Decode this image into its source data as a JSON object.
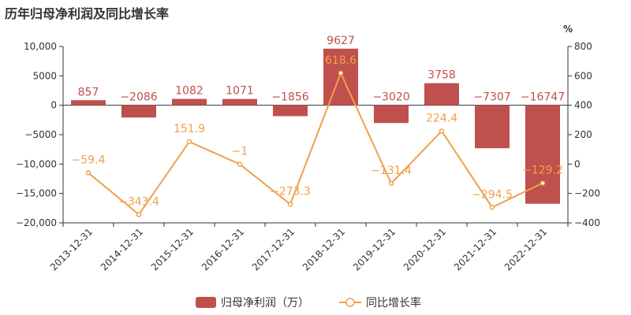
{
  "chart_data": {
    "type": "bar",
    "title": "历年归母净利润及同比增长率",
    "categories": [
      "2013-12-31",
      "2014-12-31",
      "2015-12-31",
      "2016-12-31",
      "2017-12-31",
      "2018-12-31",
      "2019-12-31",
      "2020-12-31",
      "2021-12-31",
      "2022-12-31"
    ],
    "series": [
      {
        "name": "归母净利润（万）",
        "type": "bar",
        "axis": "left",
        "color": "#c0504d",
        "values": [
          857,
          -2086,
          1082,
          1071,
          -1856,
          9627,
          -3020,
          3758,
          -7307,
          -16747
        ],
        "labels": [
          "857",
          "−2086",
          "1082",
          "1071",
          "−1856",
          "9627",
          "−3020",
          "3758",
          "−7307",
          "−16747"
        ]
      },
      {
        "name": "同比增长率",
        "type": "line",
        "axis": "right",
        "color": "#f0a04b",
        "values": [
          -59.4,
          -343.4,
          151.9,
          -1,
          -273.3,
          618.6,
          -131.4,
          224.4,
          -294.5,
          -129.2
        ],
        "labels": [
          "−59.4",
          "−343.4",
          "151.9",
          "−1",
          "−273.3",
          "618.6",
          "−131.4",
          "224.4",
          "−294.5",
          "−129.2"
        ]
      }
    ],
    "y_left": {
      "min": -20000,
      "max": 10000,
      "ticks": [
        10000,
        5000,
        0,
        -5000,
        -10000,
        -15000,
        -20000
      ],
      "tick_labels": [
        "10,000",
        "5000",
        "0",
        "−5000",
        "−10,000",
        "−15,000",
        "−20,000"
      ]
    },
    "y_right": {
      "min": -400,
      "max": 800,
      "unit": "%",
      "ticks": [
        800,
        600,
        400,
        200,
        0,
        -200,
        -400
      ],
      "tick_labels": [
        "800",
        "600",
        "400",
        "200",
        "0",
        "−200",
        "−400"
      ]
    },
    "legend": {
      "position": "bottom",
      "items": [
        {
          "label": "归母净利润（万）",
          "kind": "bar",
          "color": "#c0504d"
        },
        {
          "label": "同比增长率",
          "kind": "line",
          "color": "#f0a04b"
        }
      ]
    },
    "grid": false
  }
}
